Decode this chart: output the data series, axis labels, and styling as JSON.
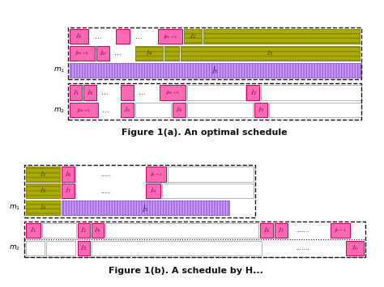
{
  "fig1a_title": "Figure 1(a). An optimal schedule",
  "fig1b_title": "Figure 1(b). A schedule by H...",
  "pink": "#FF69B4",
  "pink_edge": "#CC0066",
  "green_yellow_face": "#AAAA00",
  "green_yellow_edge": "#888800",
  "purple_face": "#CC99FF",
  "purple_edge": "#9966CC",
  "white": "#FFFFFF",
  "bg": "#FFFFFF",
  "text_color": "#111111",
  "title_fontsize": 8.0,
  "label_fontsize": 5.0,
  "mlabel_fontsize": 6.5
}
